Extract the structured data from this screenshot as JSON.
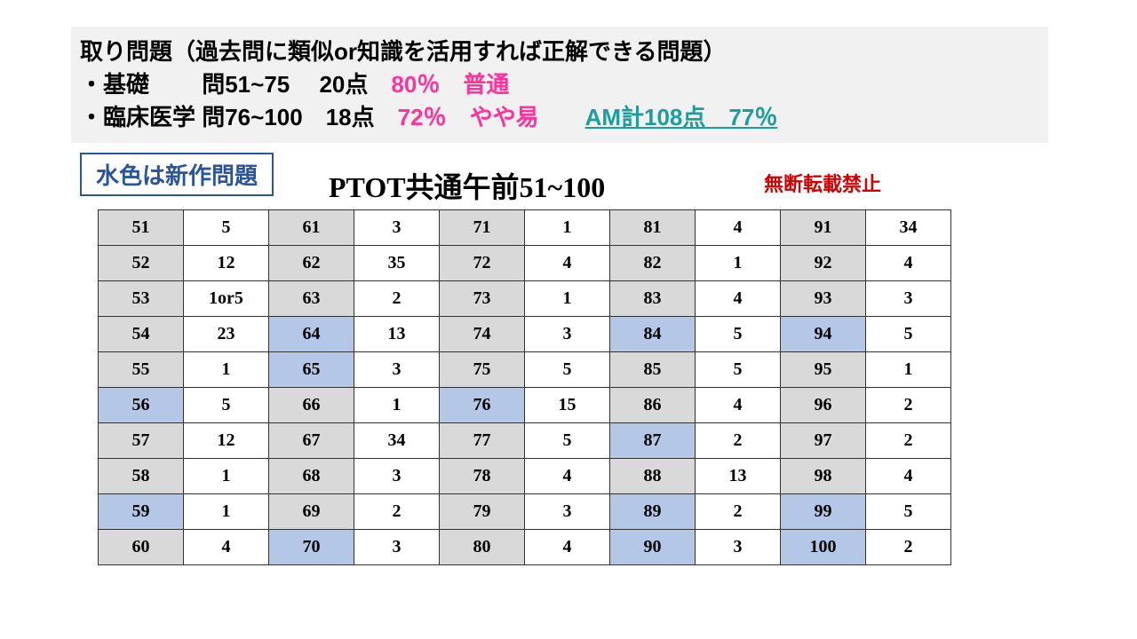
{
  "header": {
    "line1": "取り問題（過去問に類似or知識を活用すれば正解できる問題）",
    "line2_a": "・基礎　　 問51~75　 20点　",
    "line2_pct": "80％",
    "line2_b": "　普通",
    "line3_a": "・臨床医学 問76~100　18点　",
    "line3_pct": "72％",
    "line3_b": "　やや易　　",
    "line3_total": "AM計108点　77％"
  },
  "legend": "水色は新作問題",
  "table_title": "PTOT共通午前51~100",
  "no_copy": "無断転載禁止",
  "styles": {
    "gray": "#d9d9d9",
    "blue": "#b4c7e7",
    "white": "#ffffff",
    "pink": "#ff3399",
    "teal": "#1b9e9e",
    "border": "#333333",
    "cell_font": "Times New Roman",
    "cell_fontsize": 20,
    "header_fontsize": 26,
    "title_fontsize": 32
  },
  "blue_cells": [
    "56",
    "59",
    "64",
    "65",
    "70",
    "76",
    "84",
    "87",
    "89",
    "90",
    "94",
    "99",
    "100"
  ],
  "answers": {
    "51": "5",
    "52": "12",
    "53": "1or5",
    "54": "23",
    "55": "1",
    "56": "5",
    "57": "12",
    "58": "1",
    "59": "1",
    "60": "4",
    "61": "3",
    "62": "35",
    "63": "2",
    "64": "13",
    "65": "3",
    "66": "1",
    "67": "34",
    "68": "3",
    "69": "2",
    "70": "3",
    "71": "1",
    "72": "4",
    "73": "1",
    "74": "3",
    "75": "5",
    "76": "15",
    "77": "5",
    "78": "4",
    "79": "3",
    "80": "4",
    "81": "4",
    "82": "1",
    "83": "4",
    "84": "5",
    "85": "5",
    "86": "4",
    "87": "2",
    "88": "13",
    "89": "2",
    "90": "3",
    "91": "34",
    "92": "4",
    "93": "3",
    "94": "5",
    "95": "1",
    "96": "2",
    "97": "2",
    "98": "4",
    "99": "5",
    "100": "2"
  }
}
